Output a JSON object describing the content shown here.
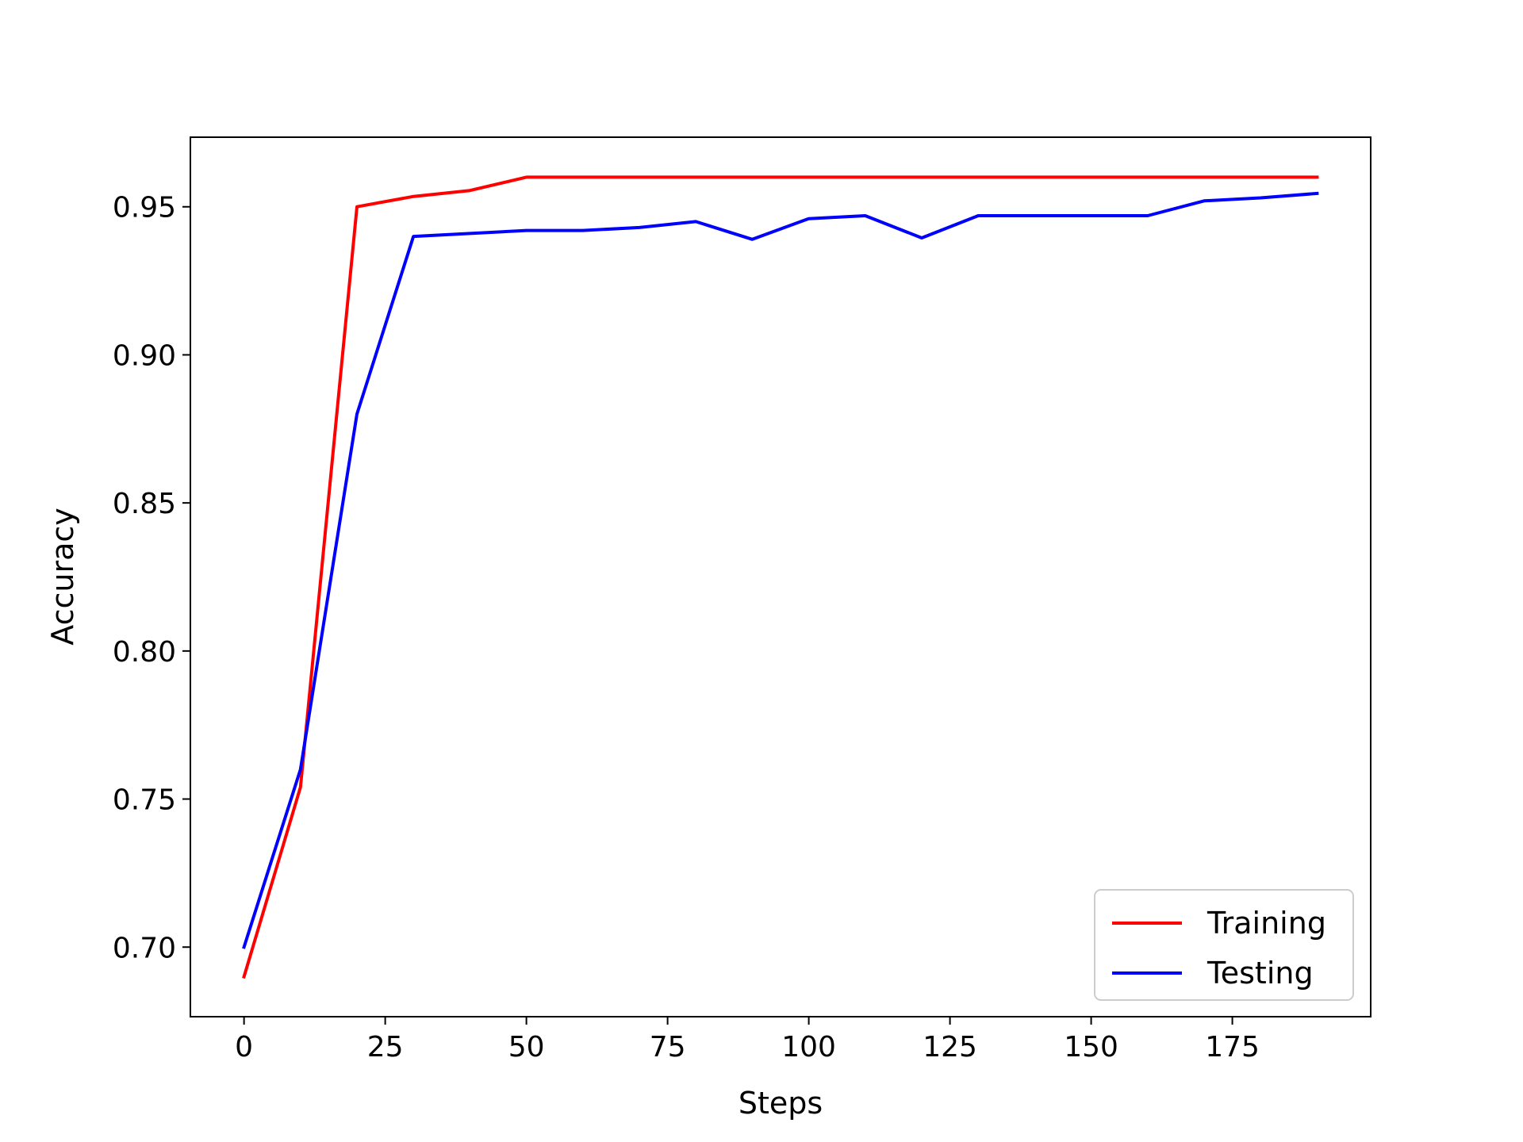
{
  "chart_data": {
    "type": "line",
    "title": "",
    "xlabel": "Steps",
    "ylabel": "Accuracy",
    "xlim": [
      -9.5,
      199.5
    ],
    "ylim": [
      0.6765,
      0.9735
    ],
    "xticks": [
      0,
      25,
      50,
      75,
      100,
      125,
      150,
      175
    ],
    "yticks": [
      0.7,
      0.75,
      0.8,
      0.85,
      0.9,
      0.95
    ],
    "xtick_labels": [
      "0",
      "25",
      "50",
      "75",
      "100",
      "125",
      "150",
      "175"
    ],
    "ytick_labels": [
      "0.70",
      "0.75",
      "0.80",
      "0.85",
      "0.90",
      "0.95"
    ],
    "grid": false,
    "legend_position": "bottom-right",
    "x": [
      0,
      10,
      20,
      30,
      40,
      50,
      60,
      70,
      80,
      90,
      100,
      110,
      120,
      130,
      140,
      150,
      160,
      170,
      180,
      190
    ],
    "series": [
      {
        "name": "Training",
        "color": "#ff0000",
        "values": [
          0.69,
          0.754,
          0.95,
          0.9535,
          0.9555,
          0.96,
          0.96,
          0.96,
          0.96,
          0.96,
          0.96,
          0.96,
          0.96,
          0.96,
          0.96,
          0.96,
          0.96,
          0.96,
          0.96,
          0.96
        ]
      },
      {
        "name": "Testing",
        "color": "#0000ff",
        "values": [
          0.7,
          0.76,
          0.88,
          0.94,
          0.941,
          0.942,
          0.942,
          0.943,
          0.945,
          0.939,
          0.946,
          0.947,
          0.9395,
          0.947,
          0.947,
          0.947,
          0.947,
          0.952,
          0.953,
          0.9545
        ]
      }
    ]
  }
}
